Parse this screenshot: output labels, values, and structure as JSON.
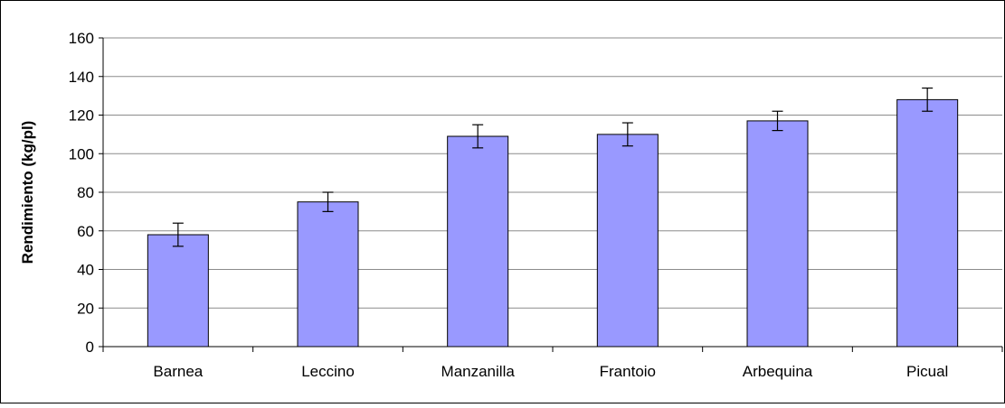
{
  "chart_data": {
    "type": "bar",
    "title": "",
    "xlabel": "",
    "ylabel": "Rendimiento (kg/pl)",
    "categories": [
      "Barnea",
      "Leccino",
      "Manzanilla",
      "Frantoio",
      "Arbequina",
      "Picual"
    ],
    "series": [
      {
        "values": [
          58,
          75,
          109,
          110,
          117,
          128
        ],
        "error": [
          6,
          5,
          6,
          6,
          5,
          6
        ]
      }
    ],
    "ylim": [
      0,
      160
    ],
    "yticks": [
      0,
      20,
      40,
      60,
      80,
      100,
      120,
      140,
      160
    ],
    "grid": true,
    "legend": "none",
    "colors": {
      "bar_fill": "#9999ff",
      "bar_stroke": "#000000",
      "grid": "#000000",
      "axis": "#000000"
    }
  }
}
